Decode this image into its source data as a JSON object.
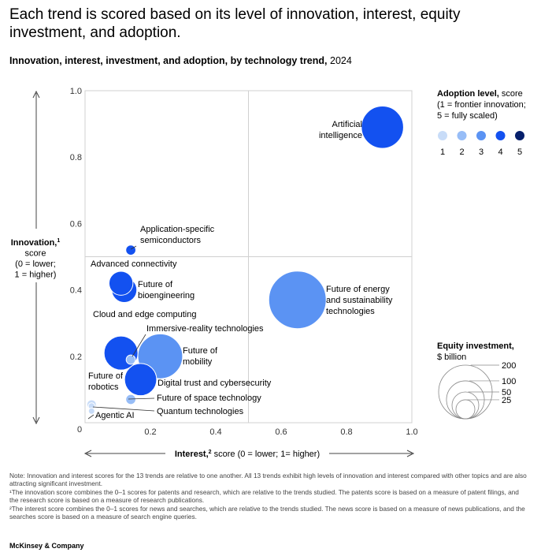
{
  "title": "Each trend is scored based on its level of innovation, interest, equity investment, and adoption.",
  "subtitle_bold": "Innovation, interest, investment, and adoption, by technology trend,",
  "subtitle_year": "2024",
  "chart_data": {
    "type": "scatter",
    "xlabel_bold": "Interest,",
    "xlabel_sup": "2",
    "xlabel_rest": " score (0 = lower; 1= higher)",
    "ylabel_lines": [
      "Innovation,",
      "score",
      "(0 = lower;",
      "1 = higher)"
    ],
    "ylabel_sup": "1",
    "xlim": [
      0,
      1
    ],
    "ylim": [
      0,
      1
    ],
    "xticks": [
      "0",
      "0.2",
      "0.4",
      "0.6",
      "0.8",
      "1.0"
    ],
    "yticks": [
      "0.2",
      "0.4",
      "0.6",
      "0.8",
      "1.0"
    ],
    "origin_label": "0",
    "adoption_colors": {
      "1": "#c8dcf8",
      "2": "#97bdf7",
      "3": "#5b93f3",
      "4": "#1351f0",
      "5": "#061f6b"
    },
    "points": [
      {
        "name": "Artificial intelligence",
        "label_lines": [
          "Artificial",
          "intelligence"
        ],
        "x": 0.91,
        "y": 0.89,
        "adoption": 4,
        "investment": 124
      },
      {
        "name": "Application-specific semiconductors",
        "label_lines": [
          "Application-specific",
          "semiconductors"
        ],
        "x": 0.14,
        "y": 0.52,
        "adoption": 4,
        "investment": 7
      },
      {
        "name": "Advanced connectivity",
        "label_lines": [
          "Advanced connectivity"
        ],
        "x": 0.11,
        "y": 0.42,
        "adoption": 4,
        "investment": 40
      },
      {
        "name": "Future of bioengineering",
        "label_lines": [
          "Future of",
          "bioengineering"
        ],
        "x": 0.12,
        "y": 0.4,
        "adoption": 4,
        "investment": 44
      },
      {
        "name": "Future of energy and sustainability technologies",
        "label_lines": [
          "Future of energy",
          "and sustainability",
          "technologies"
        ],
        "x": 0.65,
        "y": 0.37,
        "adoption": 3,
        "investment": 230
      },
      {
        "name": "Cloud and edge computing",
        "label_lines": [
          "Cloud and edge computing"
        ],
        "x": 0.11,
        "y": 0.21,
        "adoption": 4,
        "investment": 80
      },
      {
        "name": "Immersive-reality technologies",
        "label_lines": [
          "Immersive-reality technologies"
        ],
        "x": 0.14,
        "y": 0.19,
        "adoption": 2,
        "investment": 6
      },
      {
        "name": "Future of mobility",
        "label_lines": [
          "Future of",
          "mobility"
        ],
        "x": 0.23,
        "y": 0.2,
        "adoption": 3,
        "investment": 140
      },
      {
        "name": "Digital trust and cybersecurity",
        "label_lines": [
          "Digital trust and cybersecurity"
        ],
        "x": 0.17,
        "y": 0.13,
        "adoption": 4,
        "investment": 72
      },
      {
        "name": "Future of space technology",
        "label_lines": [
          "Future of space technology"
        ],
        "x": 0.14,
        "y": 0.07,
        "adoption": 2,
        "investment": 7
      },
      {
        "name": "Future of robotics",
        "label_lines": [
          "Future of",
          "robotics"
        ],
        "x": 0.02,
        "y": 0.055,
        "adoption": 1,
        "investment": 6
      },
      {
        "name": "Quantum technologies",
        "label_lines": [
          "Quantum technologies"
        ],
        "x": 0.02,
        "y": 0.05,
        "adoption": 1,
        "investment": 3
      },
      {
        "name": "Agentic AI",
        "label_lines": [
          "Agentic AI"
        ],
        "x": 0.02,
        "y": 0.035,
        "adoption": 1,
        "investment": 1
      }
    ],
    "legend_adoption": {
      "title_bold": "Adoption level,",
      "title_rest": " score",
      "lines": [
        "(1 = frontier innovation;",
        "5 = fully scaled)"
      ],
      "levels": [
        "1",
        "2",
        "3",
        "4",
        "5"
      ]
    },
    "legend_investment": {
      "title_bold": "Equity investment,",
      "unit": "$ billion",
      "sizes": [
        200,
        100,
        50,
        25
      ],
      "labels": [
        "200",
        "100",
        "50",
        "25"
      ]
    }
  },
  "notes": [
    "Note: Innovation and interest scores for the 13 trends are relative to one another. All 13 trends exhibit high levels of innovation and interest compared with other topics and are also attracting significant investment.",
    "¹The innovation score combines the 0–1 scores for patents and research, which are relative to the trends studied. The patents score is based on a measure of patent filings, and the research score is based on a measure of research publications.",
    "²The interest score combines the 0–1 scores for news and searches, which are relative to the trends studied. The news score is based on a measure of news publications, and the searches score is based on a measure of search engine queries."
  ],
  "brand": "McKinsey & Company"
}
